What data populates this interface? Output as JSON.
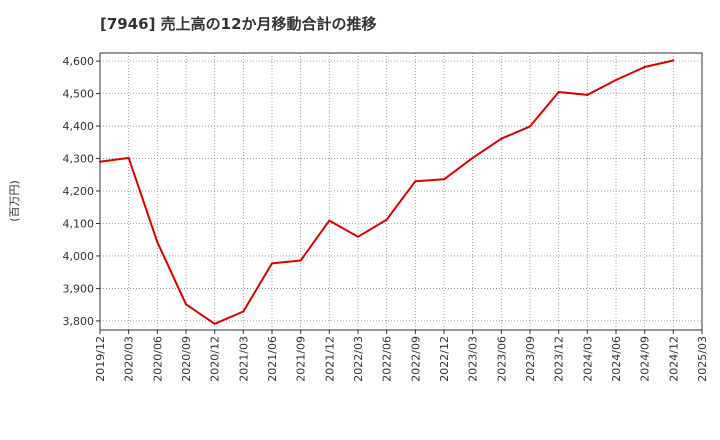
{
  "chart_data": {
    "type": "line",
    "title": "[7946]  売上高の12か月移動合計の推移",
    "ylabel": "(百万円)",
    "xlabel": "",
    "ylim": [
      3772,
      4625
    ],
    "grid": true,
    "x_ticks": [
      "2019/12",
      "2020/03",
      "2020/06",
      "2020/09",
      "2020/12",
      "2021/03",
      "2021/06",
      "2021/09",
      "2021/12",
      "2022/03",
      "2022/06",
      "2022/09",
      "2022/12",
      "2023/03",
      "2023/06",
      "2023/09",
      "2023/12",
      "2024/03",
      "2024/06",
      "2024/09",
      "2024/12",
      "2025/03"
    ],
    "y_ticks": [
      3800,
      3900,
      4000,
      4100,
      4200,
      4300,
      4400,
      4500,
      4600
    ],
    "y_tick_labels": [
      "3,800",
      "3,900",
      "4,000",
      "4,100",
      "4,200",
      "4,300",
      "4,400",
      "4,500",
      "4,600"
    ],
    "series": [
      {
        "name": "売上高の12か月移動合計",
        "color": "#dd0000",
        "values": [
          4290,
          4302,
          4043,
          3851,
          3791,
          3829,
          3977,
          3986,
          4109,
          4059,
          4112,
          4230,
          4236,
          4302,
          4361,
          4399,
          4505,
          4496,
          4542,
          4582,
          4602
        ]
      }
    ]
  }
}
